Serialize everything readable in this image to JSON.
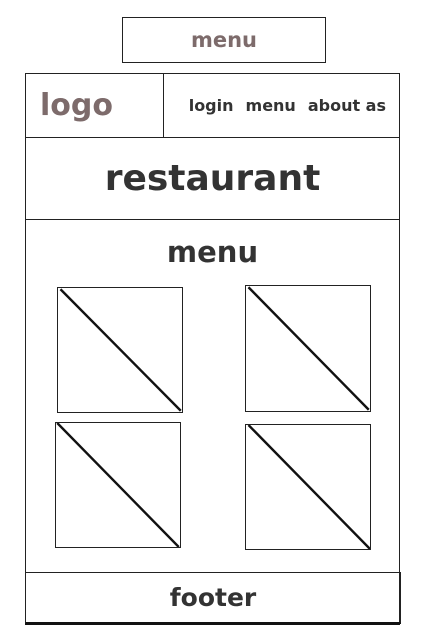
{
  "page_label": "menu",
  "header": {
    "logo": "logo",
    "nav": {
      "login": "login",
      "menu": "menu",
      "about": "about as"
    }
  },
  "hero": {
    "title": "restaurant"
  },
  "menu_section": {
    "title": "menu",
    "item_count": 4
  },
  "footer": {
    "label": "footer"
  }
}
